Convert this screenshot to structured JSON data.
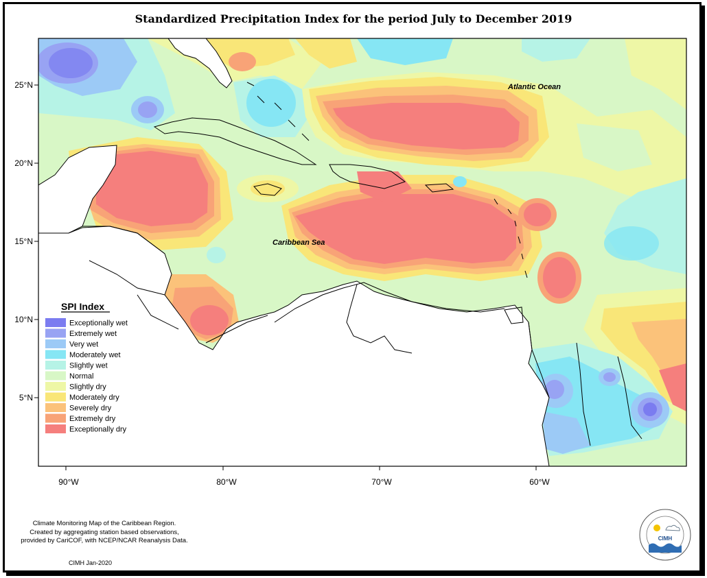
{
  "title": "Standardized Precipitation Index for the period July to December 2019",
  "map": {
    "ocean_labels": {
      "atlantic": "Atlantic Ocean",
      "caribbean": "Caribbean Sea"
    },
    "lat_ticks": [
      "25°N",
      "20°N",
      "15°N",
      "10°N",
      "5°N"
    ],
    "lon_ticks": [
      "90°W",
      "80°W",
      "70°W",
      "60°W"
    ],
    "extent": {
      "lon_min": -92,
      "lon_max": -50,
      "lat_min": 0.5,
      "lat_max": 28
    }
  },
  "legend": {
    "title": "SPI Index",
    "items": [
      {
        "label": "Exceptionally wet",
        "color": "#7b7cf0"
      },
      {
        "label": "Extremely wet",
        "color": "#98a3f3"
      },
      {
        "label": "Very wet",
        "color": "#9ccaf6"
      },
      {
        "label": "Moderately wet",
        "color": "#86e6f4"
      },
      {
        "label": "Slightly wet",
        "color": "#b6f3e6"
      },
      {
        "label": "Normal",
        "color": "#d8f7c6"
      },
      {
        "label": "Slightly dry",
        "color": "#eef7a6"
      },
      {
        "label": "Moderately dry",
        "color": "#f9e678"
      },
      {
        "label": "Severely dry",
        "color": "#fbc27a"
      },
      {
        "label": "Extremely dry",
        "color": "#f8a377"
      },
      {
        "label": "Exceptionally dry",
        "color": "#f57f7d"
      }
    ]
  },
  "credit": {
    "lines": [
      "Climate Monitoring Map of the Caribbean Region.",
      "Created by aggregating station based observations,",
      "provided by CariCOF, with NCEP/NCAR Reanalysis Data."
    ],
    "date": "CIMH Jan-2020"
  },
  "logo": {
    "text": "CIMH",
    "ring_text": "Caribbean Institute for Meteorology and Hydrology"
  }
}
